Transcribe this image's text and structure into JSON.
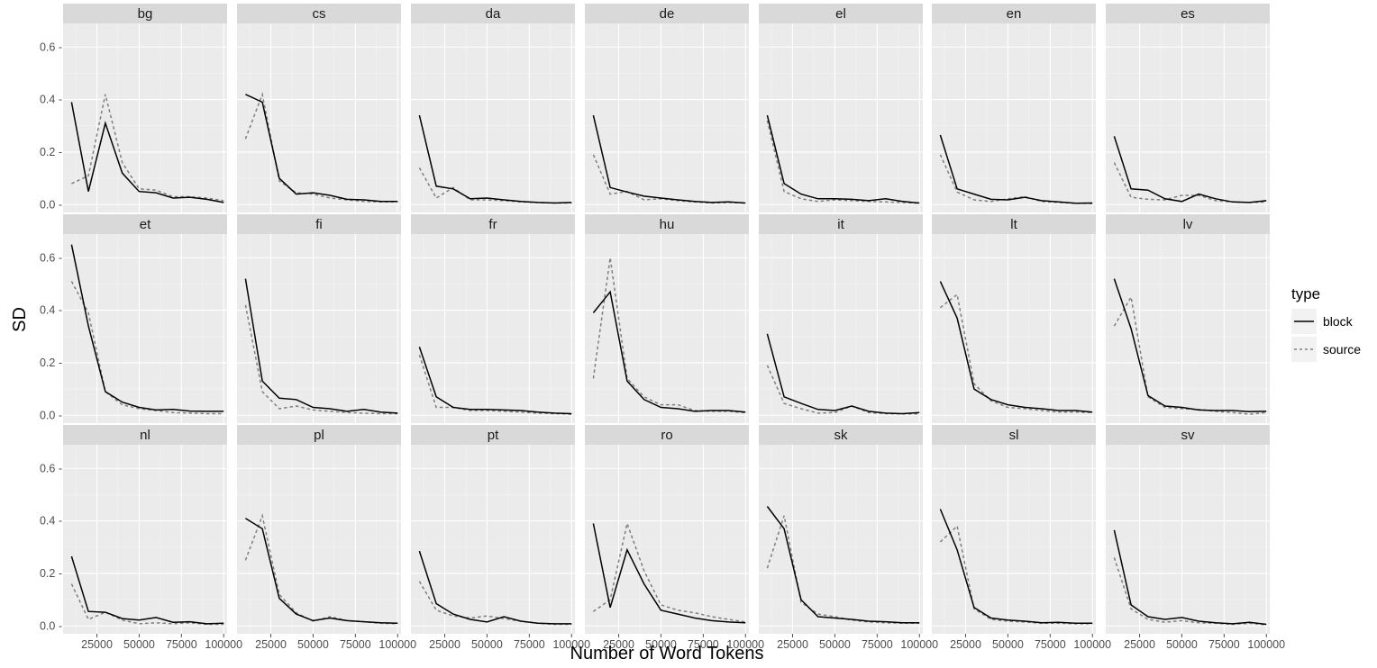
{
  "chart_data": {
    "type": "line",
    "facet": "small-multiples",
    "xlabel": "Number of Word Tokens",
    "ylabel": "SD",
    "xlim": [
      5000,
      102000
    ],
    "ylim": [
      -0.03,
      0.69
    ],
    "x_ticks": [
      25000,
      50000,
      75000,
      100000
    ],
    "x_tick_labels": [
      "25000",
      "50000",
      "75000",
      "100000"
    ],
    "y_ticks": [
      0.0,
      0.2,
      0.4,
      0.6
    ],
    "y_tick_labels": [
      "0.0 -",
      "0.2 -",
      "0.4 -",
      "0.6 -"
    ],
    "grid": true,
    "legend": {
      "title": "type",
      "position": "right",
      "entries": [
        {
          "name": "block",
          "color": "#000000",
          "dash": "solid"
        },
        {
          "name": "source",
          "color": "#7f7f7f",
          "dash": "dashed"
        }
      ]
    },
    "colors": {
      "panel_bg": "#ebebeb",
      "grid": "#ffffff",
      "block": "#000000",
      "source": "#7f7f7f"
    },
    "x": [
      10000,
      20000,
      30000,
      40000,
      50000,
      60000,
      70000,
      80000,
      90000,
      100000
    ],
    "panels": [
      {
        "label": "bg",
        "block": [
          0.39,
          0.05,
          0.31,
          0.12,
          0.05,
          0.045,
          0.025,
          0.028,
          0.02,
          0.008
        ],
        "source": [
          0.08,
          0.11,
          0.42,
          0.16,
          0.06,
          0.055,
          0.03,
          0.03,
          0.025,
          0.015
        ]
      },
      {
        "label": "cs",
        "block": [
          0.42,
          0.39,
          0.1,
          0.04,
          0.045,
          0.035,
          0.02,
          0.018,
          0.012,
          0.012
        ],
        "source": [
          0.25,
          0.42,
          0.09,
          0.045,
          0.04,
          0.025,
          0.018,
          0.012,
          0.01,
          0.01
        ]
      },
      {
        "label": "da",
        "block": [
          0.34,
          0.07,
          0.06,
          0.022,
          0.025,
          0.018,
          0.012,
          0.008,
          0.006,
          0.008
        ],
        "source": [
          0.14,
          0.025,
          0.065,
          0.018,
          0.018,
          0.015,
          0.01,
          0.008,
          0.006,
          0.006
        ]
      },
      {
        "label": "de",
        "block": [
          0.34,
          0.065,
          0.048,
          0.032,
          0.025,
          0.018,
          0.012,
          0.008,
          0.01,
          0.006
        ],
        "source": [
          0.19,
          0.04,
          0.05,
          0.018,
          0.022,
          0.015,
          0.01,
          0.006,
          0.008,
          0.006
        ]
      },
      {
        "label": "el",
        "block": [
          0.34,
          0.08,
          0.04,
          0.022,
          0.022,
          0.02,
          0.015,
          0.022,
          0.012,
          0.006
        ],
        "source": [
          0.32,
          0.05,
          0.022,
          0.012,
          0.018,
          0.015,
          0.012,
          0.01,
          0.008,
          0.005
        ]
      },
      {
        "label": "en",
        "block": [
          0.265,
          0.06,
          0.04,
          0.02,
          0.018,
          0.028,
          0.015,
          0.01,
          0.005,
          0.006
        ],
        "source": [
          0.19,
          0.048,
          0.018,
          0.012,
          0.022,
          0.03,
          0.012,
          0.008,
          0.005,
          0.004
        ]
      },
      {
        "label": "es",
        "block": [
          0.26,
          0.06,
          0.055,
          0.022,
          0.012,
          0.04,
          0.022,
          0.01,
          0.008,
          0.015
        ],
        "source": [
          0.16,
          0.028,
          0.02,
          0.018,
          0.035,
          0.035,
          0.015,
          0.01,
          0.008,
          0.01
        ]
      },
      {
        "label": "et",
        "block": [
          0.65,
          0.34,
          0.09,
          0.05,
          0.03,
          0.02,
          0.022,
          0.016,
          0.015,
          0.015
        ],
        "source": [
          0.51,
          0.39,
          0.09,
          0.04,
          0.025,
          0.018,
          0.01,
          0.008,
          0.006,
          0.006
        ]
      },
      {
        "label": "fi",
        "block": [
          0.52,
          0.13,
          0.065,
          0.06,
          0.03,
          0.025,
          0.015,
          0.022,
          0.012,
          0.008
        ],
        "source": [
          0.42,
          0.09,
          0.025,
          0.035,
          0.02,
          0.015,
          0.01,
          0.008,
          0.006,
          0.006
        ]
      },
      {
        "label": "fr",
        "block": [
          0.26,
          0.07,
          0.03,
          0.022,
          0.022,
          0.02,
          0.018,
          0.012,
          0.008,
          0.006
        ],
        "source": [
          0.23,
          0.03,
          0.03,
          0.018,
          0.018,
          0.015,
          0.012,
          0.008,
          0.006,
          0.004
        ]
      },
      {
        "label": "hu",
        "block": [
          0.39,
          0.47,
          0.13,
          0.06,
          0.03,
          0.025,
          0.015,
          0.018,
          0.018,
          0.012
        ],
        "source": [
          0.14,
          0.6,
          0.14,
          0.07,
          0.04,
          0.04,
          0.018,
          0.015,
          0.015,
          0.01
        ]
      },
      {
        "label": "it",
        "block": [
          0.31,
          0.07,
          0.045,
          0.022,
          0.018,
          0.035,
          0.015,
          0.008,
          0.006,
          0.01
        ],
        "source": [
          0.19,
          0.045,
          0.025,
          0.008,
          0.01,
          0.035,
          0.01,
          0.006,
          0.005,
          0.005
        ]
      },
      {
        "label": "lt",
        "block": [
          0.51,
          0.37,
          0.1,
          0.06,
          0.04,
          0.03,
          0.025,
          0.018,
          0.018,
          0.012
        ],
        "source": [
          0.41,
          0.46,
          0.12,
          0.055,
          0.03,
          0.025,
          0.018,
          0.012,
          0.012,
          0.01
        ]
      },
      {
        "label": "lv",
        "block": [
          0.52,
          0.33,
          0.075,
          0.035,
          0.03,
          0.02,
          0.018,
          0.018,
          0.014,
          0.015
        ],
        "source": [
          0.34,
          0.45,
          0.07,
          0.03,
          0.025,
          0.022,
          0.015,
          0.01,
          0.004,
          0.01
        ]
      },
      {
        "label": "nl",
        "block": [
          0.265,
          0.055,
          0.052,
          0.028,
          0.022,
          0.032,
          0.014,
          0.016,
          0.008,
          0.01
        ],
        "source": [
          0.16,
          0.025,
          0.052,
          0.022,
          0.008,
          0.012,
          0.008,
          0.012,
          0.006,
          0.006
        ]
      },
      {
        "label": "pl",
        "block": [
          0.41,
          0.37,
          0.105,
          0.045,
          0.02,
          0.03,
          0.02,
          0.016,
          0.012,
          0.01
        ],
        "source": [
          0.25,
          0.42,
          0.12,
          0.05,
          0.018,
          0.035,
          0.02,
          0.016,
          0.01,
          0.008
        ]
      },
      {
        "label": "pt",
        "block": [
          0.285,
          0.085,
          0.045,
          0.025,
          0.015,
          0.035,
          0.018,
          0.01,
          0.008,
          0.008
        ],
        "source": [
          0.17,
          0.06,
          0.038,
          0.03,
          0.038,
          0.028,
          0.018,
          0.01,
          0.006,
          0.006
        ]
      },
      {
        "label": "ro",
        "block": [
          0.39,
          0.07,
          0.29,
          0.16,
          0.06,
          0.045,
          0.03,
          0.02,
          0.015,
          0.012
        ],
        "source": [
          0.055,
          0.1,
          0.39,
          0.21,
          0.08,
          0.06,
          0.05,
          0.035,
          0.025,
          0.015
        ]
      },
      {
        "label": "sk",
        "block": [
          0.455,
          0.37,
          0.1,
          0.035,
          0.03,
          0.025,
          0.018,
          0.016,
          0.012,
          0.012
        ],
        "source": [
          0.22,
          0.42,
          0.09,
          0.045,
          0.035,
          0.022,
          0.015,
          0.012,
          0.01,
          0.01
        ]
      },
      {
        "label": "sl",
        "block": [
          0.445,
          0.29,
          0.07,
          0.03,
          0.022,
          0.018,
          0.012,
          0.014,
          0.01,
          0.01
        ],
        "source": [
          0.32,
          0.38,
          0.065,
          0.025,
          0.018,
          0.015,
          0.01,
          0.01,
          0.008,
          0.008
        ]
      },
      {
        "label": "sv",
        "block": [
          0.365,
          0.08,
          0.035,
          0.025,
          0.032,
          0.018,
          0.012,
          0.008,
          0.014,
          0.006
        ],
        "source": [
          0.26,
          0.065,
          0.025,
          0.014,
          0.02,
          0.012,
          0.01,
          0.006,
          0.01,
          0.004
        ]
      }
    ]
  }
}
